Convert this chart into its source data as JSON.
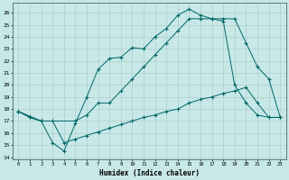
{
  "xlabel": "Humidex (Indice chaleur)",
  "bg_color": "#c8e8e8",
  "line_color": "#006666",
  "xlim": [
    -0.5,
    23.5
  ],
  "ylim": [
    13.8,
    26.8
  ],
  "xticks": [
    0,
    1,
    2,
    3,
    4,
    5,
    6,
    7,
    8,
    9,
    10,
    11,
    12,
    13,
    14,
    15,
    16,
    17,
    18,
    19,
    20,
    21,
    22,
    23
  ],
  "yticks": [
    14,
    15,
    16,
    17,
    18,
    19,
    20,
    21,
    22,
    23,
    24,
    25,
    26
  ],
  "line1_x": [
    0,
    1,
    2,
    3,
    4,
    5,
    6,
    7,
    8,
    9,
    10,
    11,
    12,
    13,
    14,
    15,
    16,
    17,
    18,
    19,
    20,
    21,
    22,
    23
  ],
  "line1_y": [
    17.8,
    17.3,
    17.0,
    15.2,
    14.5,
    16.8,
    19.0,
    21.3,
    22.2,
    22.3,
    23.1,
    23.0,
    24.0,
    24.7,
    25.8,
    26.3,
    25.8,
    25.5,
    25.3,
    20.0,
    18.5,
    17.5,
    17.3,
    17.3
  ],
  "line2_x": [
    0,
    2,
    5,
    6,
    7,
    8,
    9,
    10,
    11,
    12,
    13,
    14,
    15,
    16,
    17,
    18,
    19,
    20,
    21,
    22,
    23
  ],
  "line2_y": [
    17.8,
    17.0,
    17.0,
    17.5,
    18.5,
    18.5,
    19.5,
    20.5,
    21.5,
    22.5,
    23.5,
    24.5,
    25.5,
    25.5,
    25.5,
    25.5,
    25.5,
    23.5,
    21.5,
    20.5,
    17.3
  ],
  "line3_x": [
    0,
    1,
    2,
    3,
    4,
    5,
    6,
    7,
    8,
    9,
    10,
    11,
    12,
    13,
    14,
    15,
    16,
    17,
    18,
    19,
    20,
    21,
    22,
    23
  ],
  "line3_y": [
    17.8,
    17.3,
    17.0,
    17.0,
    15.2,
    15.5,
    15.8,
    16.1,
    16.4,
    16.7,
    17.0,
    17.3,
    17.5,
    17.8,
    18.0,
    18.5,
    18.8,
    19.0,
    19.3,
    19.5,
    19.8,
    18.5,
    17.3,
    17.3
  ]
}
